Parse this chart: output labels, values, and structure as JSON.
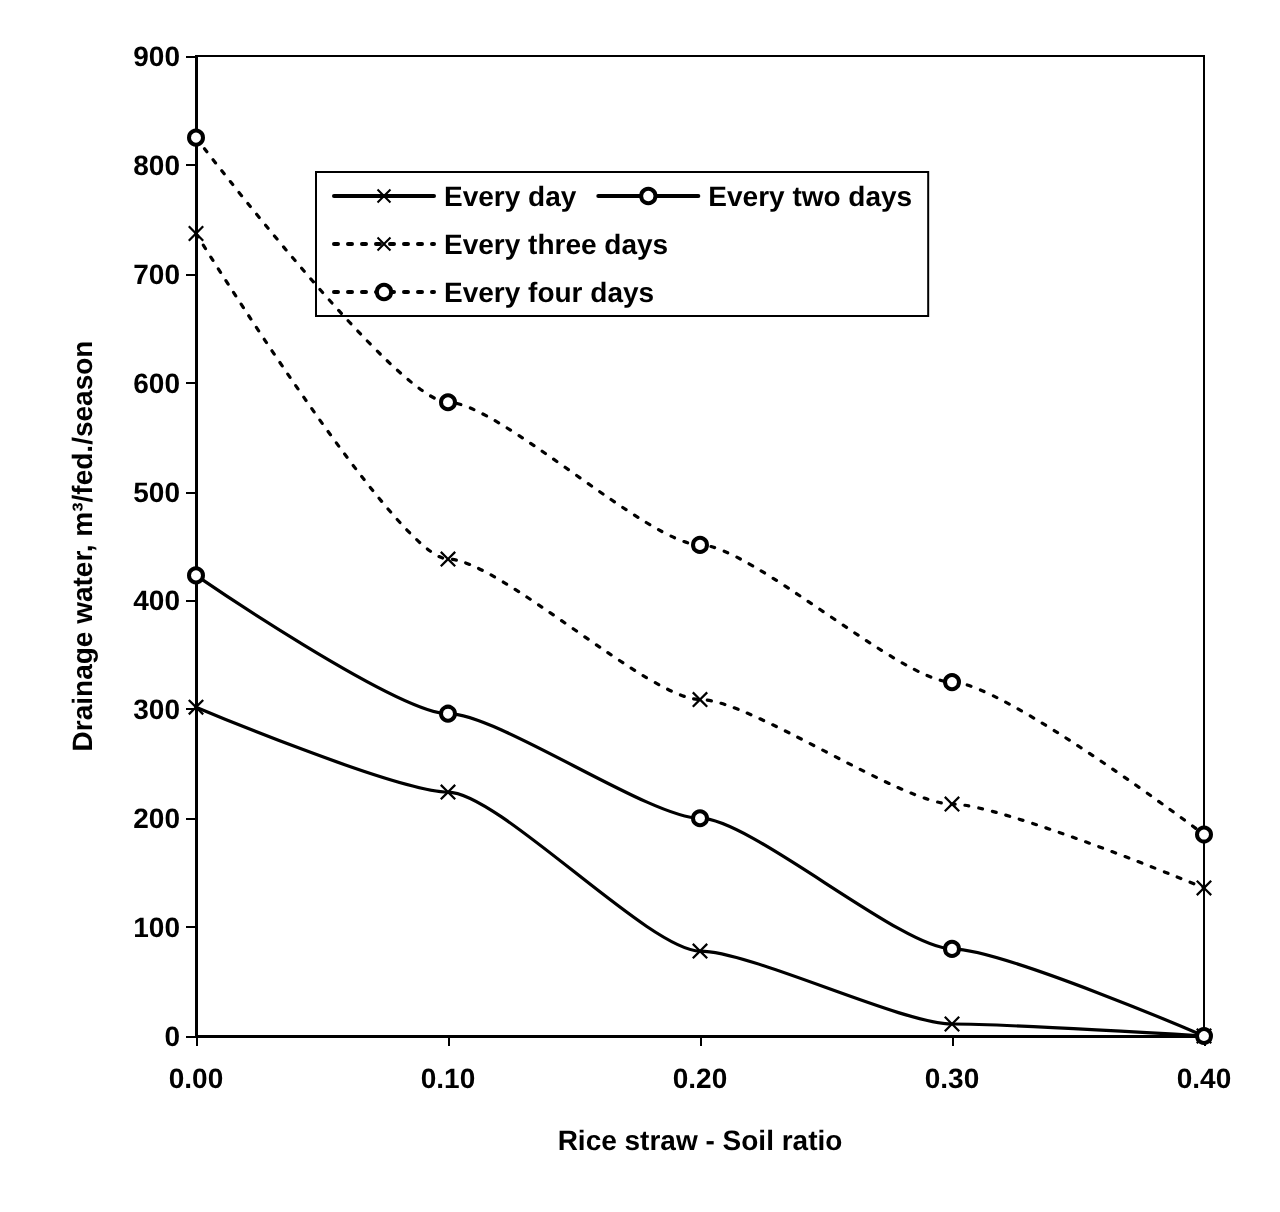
{
  "chart_data": {
    "type": "line",
    "xlabel": "Rice straw - Soil ratio",
    "ylabel": "Drainage water, m³/fed./season",
    "x": [
      0,
      0.1,
      0.2,
      0.3,
      0.4
    ],
    "xlim": [
      0,
      0.4
    ],
    "xticks": [
      {
        "value": 0,
        "label": "0.00"
      },
      {
        "value": 0.1,
        "label": "0.10"
      },
      {
        "value": 0.2,
        "label": "0.20"
      },
      {
        "value": 0.3,
        "label": "0.30"
      },
      {
        "value": 0.4,
        "label": "0.40"
      }
    ],
    "ylim": [
      0,
      900
    ],
    "yticks": [
      0,
      100,
      200,
      300,
      400,
      500,
      600,
      700,
      800,
      900
    ],
    "grid": false,
    "legend": "top",
    "series": [
      {
        "name": "Every day",
        "color": "#000000",
        "marker": "cross",
        "line_style": "solid",
        "values": [
          302,
          224,
          78,
          11,
          0
        ]
      },
      {
        "name": "Every two days",
        "color": "#000000",
        "marker": "circle",
        "line_style": "solid",
        "values": [
          423,
          296,
          200,
          80,
          0
        ]
      },
      {
        "name": "Every three days",
        "color": "#000000",
        "marker": "cross",
        "line_style": "dotted",
        "values": [
          737,
          438,
          309,
          213,
          136
        ]
      },
      {
        "name": "Every four days",
        "color": "#000000",
        "marker": "circle",
        "line_style": "dotted",
        "values": [
          825,
          582,
          451,
          325,
          185
        ]
      }
    ]
  }
}
